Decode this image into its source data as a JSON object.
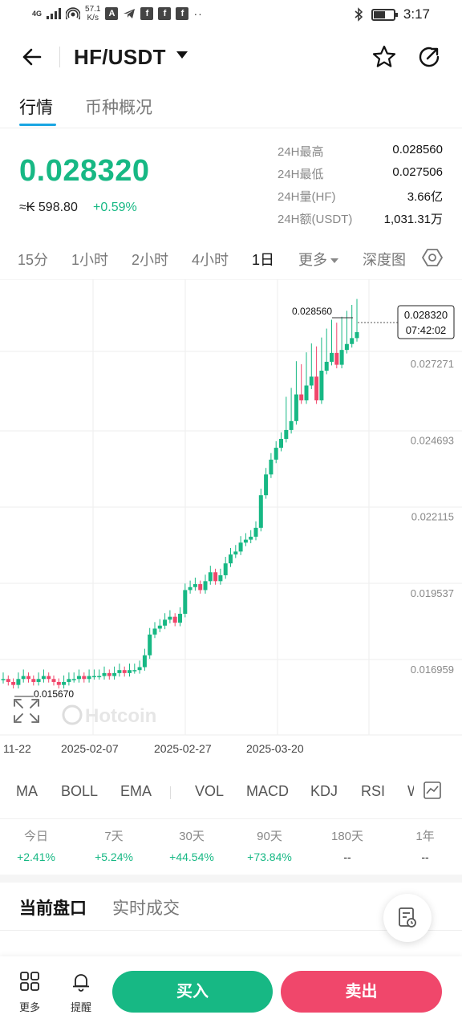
{
  "status_bar": {
    "network_icon": "signal-icon",
    "network_label": "4G",
    "speed_value": "57.1",
    "speed_unit": "K/s",
    "app_icons": [
      "a-icon",
      "telegram-icon",
      "facebook-icon",
      "facebook-icon",
      "facebook-icon"
    ],
    "time": "3:17"
  },
  "header": {
    "pair": "HF/USDT"
  },
  "tabs": [
    "行情",
    "币种概况"
  ],
  "ticker": {
    "price": "0.028320",
    "fiat": "≈₭ 598.80",
    "change": "+0.59%",
    "stats": [
      {
        "label": "24H最高",
        "value": "0.028560"
      },
      {
        "label": "24H最低",
        "value": "0.027506"
      },
      {
        "label": "24H量(HF)",
        "value": "3.66亿"
      },
      {
        "label": "24H额(USDT)",
        "value": "1,031.31万"
      }
    ]
  },
  "intervals": [
    "15分",
    "1小时",
    "2小时",
    "4小时",
    "1日",
    "更多",
    "深度图"
  ],
  "active_interval": "1日",
  "colors": {
    "up": "#17b884",
    "down": "#f0476b",
    "accent": "#1aa5e2"
  },
  "chart_data": {
    "type": "candlestick",
    "y_ticks": [
      "0.027271",
      "0.024693",
      "0.022115",
      "0.019537",
      "0.016959"
    ],
    "x_ticks": [
      "11-22",
      "2025-02-07",
      "2025-02-27",
      "2025-03-20"
    ],
    "high_label": "0.028560",
    "low_label": "0.015670",
    "last_price_label": "0.028320",
    "countdown_label": "07:42:02",
    "watermark": "Hotcoin",
    "closes": [
      0.0166,
      0.0165,
      0.0164,
      0.0166,
      0.0167,
      0.0166,
      0.0165,
      0.0166,
      0.0167,
      0.0166,
      0.0165,
      0.0164,
      0.0165,
      0.0166,
      0.0166,
      0.0167,
      0.0166,
      0.0167,
      0.0167,
      0.0167,
      0.0168,
      0.0167,
      0.0168,
      0.0169,
      0.0168,
      0.0169,
      0.0169,
      0.017,
      0.0174,
      0.0181,
      0.0183,
      0.0184,
      0.0186,
      0.0187,
      0.0185,
      0.0188,
      0.0196,
      0.0197,
      0.0198,
      0.0196,
      0.0199,
      0.0202,
      0.0199,
      0.0201,
      0.0205,
      0.0208,
      0.0209,
      0.0212,
      0.0213,
      0.0214,
      0.0217,
      0.0228,
      0.0235,
      0.024,
      0.0244,
      0.0247,
      0.025,
      0.0253,
      0.0262,
      0.026,
      0.0265,
      0.0268,
      0.026,
      0.027,
      0.0273,
      0.0276,
      0.0272,
      0.0277,
      0.0279,
      0.0281,
      0.0283
    ]
  },
  "indicators": [
    "MA",
    "BOLL",
    "EMA",
    "VOL",
    "MACD",
    "KDJ",
    "RSI",
    "W"
  ],
  "performance": [
    {
      "label": "今日",
      "value": "+2.41%"
    },
    {
      "label": "7天",
      "value": "+5.24%"
    },
    {
      "label": "30天",
      "value": "+44.54%"
    },
    {
      "label": "90天",
      "value": "+73.84%"
    },
    {
      "label": "180天",
      "value": "--"
    },
    {
      "label": "1年",
      "value": "--"
    }
  ],
  "orderbook_tabs": [
    "当前盘口",
    "实时成交"
  ],
  "bottom": {
    "more": "更多",
    "alert": "提醒",
    "buy": "买入",
    "sell": "卖出"
  }
}
